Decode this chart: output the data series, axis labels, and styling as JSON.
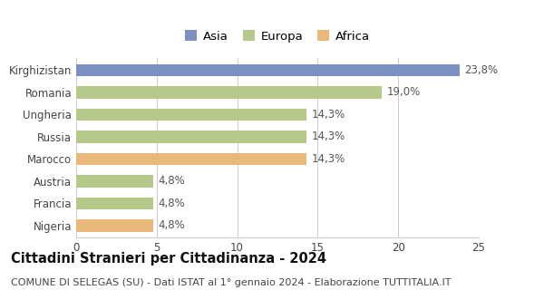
{
  "categories": [
    "Kirghizistan",
    "Romania",
    "Ungheria",
    "Russia",
    "Marocco",
    "Austria",
    "Francia",
    "Nigeria"
  ],
  "values": [
    23.8,
    19.0,
    14.3,
    14.3,
    14.3,
    4.8,
    4.8,
    4.8
  ],
  "labels": [
    "23,8%",
    "19,0%",
    "14,3%",
    "14,3%",
    "14,3%",
    "4,8%",
    "4,8%",
    "4,8%"
  ],
  "colors": [
    "#7b8fc0",
    "#b5c98a",
    "#b5c98a",
    "#b5c98a",
    "#e8b87a",
    "#b5c98a",
    "#b5c98a",
    "#e8b87a"
  ],
  "legend_labels": [
    "Asia",
    "Europa",
    "Africa"
  ],
  "legend_colors": [
    "#7b8fc0",
    "#b5c98a",
    "#e8b87a"
  ],
  "title": "Cittadini Stranieri per Cittadinanza - 2024",
  "subtitle": "COMUNE DI SELEGAS (SU) - Dati ISTAT al 1° gennaio 2024 - Elaborazione TUTTITALIA.IT",
  "xlim": [
    0,
    25
  ],
  "xticks": [
    0,
    5,
    10,
    15,
    20,
    25
  ],
  "background_color": "#ffffff",
  "bar_height": 0.55,
  "grid_color": "#cccccc",
  "title_fontsize": 10.5,
  "subtitle_fontsize": 8.0,
  "label_fontsize": 8.5,
  "tick_fontsize": 8.5,
  "legend_fontsize": 9.5
}
